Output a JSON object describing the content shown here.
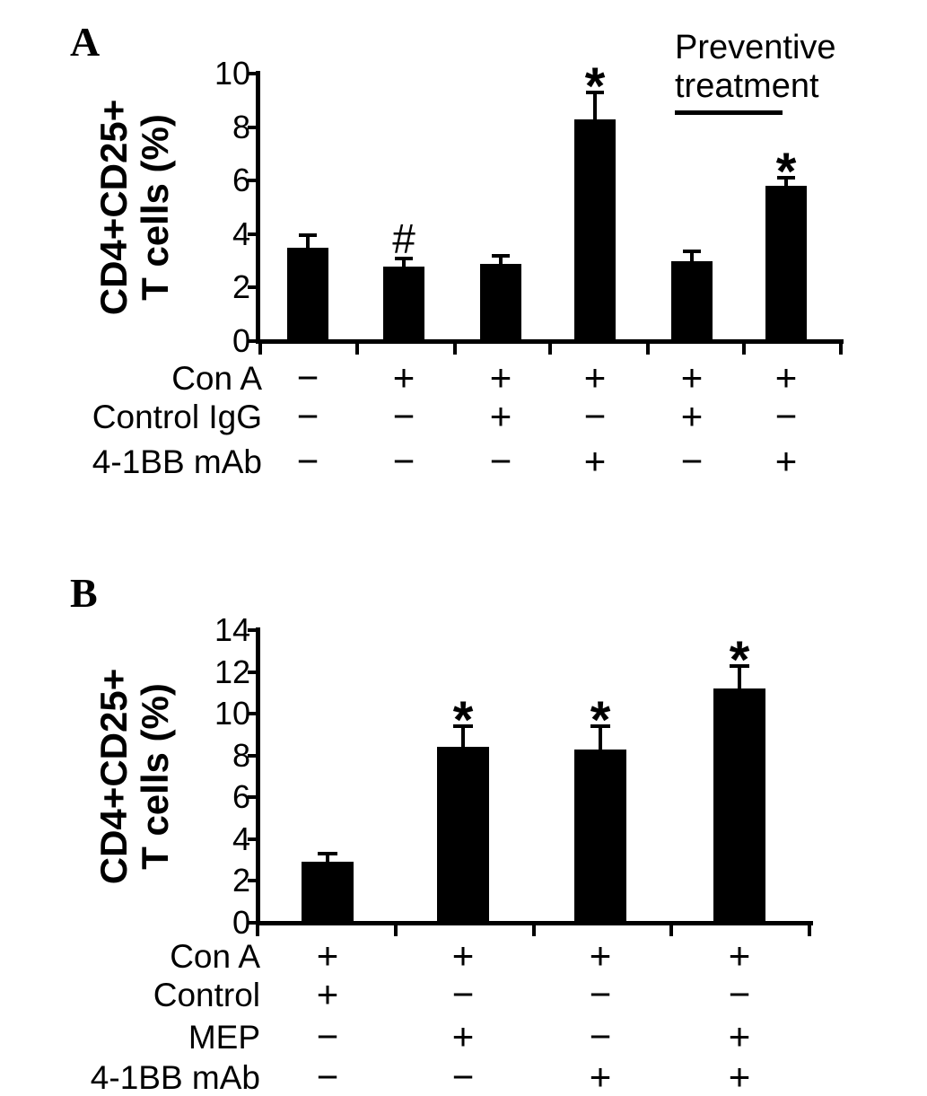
{
  "colors": {
    "ink": "#000000",
    "background": "#ffffff",
    "bar": "#000000"
  },
  "panels": [
    {
      "letter": "A",
      "ylabel": [
        "CD4+CD25+",
        "T cells (%)"
      ],
      "group_annotation": {
        "line1": "Preventive",
        "line2": "treatment"
      }
    },
    {
      "letter": "B",
      "ylabel": [
        "CD4+CD25+",
        "T cells (%)"
      ]
    }
  ],
  "chart_data": [
    {
      "type": "bar",
      "panel": "A",
      "title": "",
      "xlabel": "",
      "ylabel": "CD4+CD25+ T cells (%)",
      "ylim": [
        0,
        10
      ],
      "ytick_step": 2,
      "grid": false,
      "legend": false,
      "bar_color": "#000000",
      "categories": [
        "Con A −, Control IgG −, 4-1BB mAb −",
        "Con A +, Control IgG −, 4-1BB mAb −",
        "Con A +, Control IgG +, 4-1BB mAb −",
        "Con A +, Control IgG −, 4-1BB mAb +",
        "Con A +, Control IgG +, 4-1BB mAb − (preventive treatment)",
        "Con A +, Control IgG −, 4-1BB mAb + (preventive treatment)"
      ],
      "values": [
        3.5,
        2.8,
        2.9,
        8.3,
        3.0,
        5.8
      ],
      "errors": [
        0.45,
        0.3,
        0.3,
        1.0,
        0.35,
        0.3
      ],
      "annotations": [
        "",
        "#",
        "",
        "*",
        "",
        "*"
      ],
      "group_label": {
        "text": "Preventive treatment",
        "bars": [
          5,
          6
        ]
      },
      "x_table": {
        "rows": [
          {
            "label": "Con A",
            "cells": [
              "−",
              "+",
              "+",
              "+",
              "+",
              "+"
            ]
          },
          {
            "label": "Control IgG",
            "cells": [
              "−",
              "−",
              "+",
              "−",
              "+",
              "−"
            ]
          },
          {
            "label": "4-1BB mAb",
            "cells": [
              "−",
              "−",
              "−",
              "+",
              "−",
              "+"
            ]
          }
        ]
      }
    },
    {
      "type": "bar",
      "panel": "B",
      "title": "",
      "xlabel": "",
      "ylabel": "CD4+CD25+ T cells (%)",
      "ylim": [
        0,
        14
      ],
      "ytick_step": 2,
      "grid": false,
      "legend": false,
      "bar_color": "#000000",
      "categories": [
        "Con A +, Control +, MEP −, 4-1BB mAb −",
        "Con A +, Control −, MEP +, 4-1BB mAb −",
        "Con A +, Control −, MEP −, 4-1BB mAb +",
        "Con A +, Control −, MEP +, 4-1BB mAb +"
      ],
      "values": [
        2.9,
        8.4,
        8.3,
        11.2
      ],
      "errors": [
        0.4,
        1.0,
        1.1,
        1.1
      ],
      "annotations": [
        "",
        "*",
        "*",
        "*"
      ],
      "x_table": {
        "rows": [
          {
            "label": "Con A",
            "cells": [
              "+",
              "+",
              "+",
              "+"
            ]
          },
          {
            "label": "Control",
            "cells": [
              "+",
              "−",
              "−",
              "−"
            ]
          },
          {
            "label": "MEP",
            "cells": [
              "−",
              "+",
              "−",
              "+"
            ]
          },
          {
            "label": "4-1BB mAb",
            "cells": [
              "−",
              "−",
              "+",
              "+"
            ]
          }
        ]
      }
    }
  ]
}
